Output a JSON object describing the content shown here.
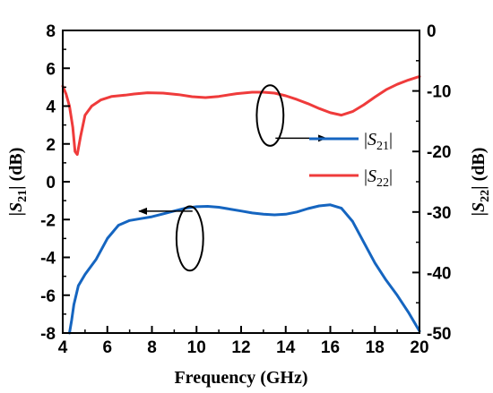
{
  "chart_data": {
    "type": "line",
    "xlabel": "Frequency (GHz)",
    "ylabel_left": {
      "prefix": "|",
      "base": "S",
      "sub": "21",
      "suffix": "| (dB)"
    },
    "ylabel_right": {
      "prefix": "|",
      "base": "S",
      "sub": "22",
      "suffix": "| (dB)"
    },
    "xlim": [
      4,
      20
    ],
    "ylim_left": [
      -8,
      8
    ],
    "ylim_right": [
      -50,
      0
    ],
    "x_ticks": [
      "4",
      "6",
      "8",
      "10",
      "12",
      "14",
      "16",
      "18",
      "20"
    ],
    "y_left_ticks": [
      "-8",
      "-6",
      "-4",
      "-2",
      "0",
      "2",
      "4",
      "6",
      "8"
    ],
    "y_right_ticks": [
      "-50",
      "-40",
      "-30",
      "-20",
      "-10",
      "0"
    ],
    "legend": {
      "position": "right-middle",
      "entries": [
        {
          "prefix": "|",
          "base": "S",
          "sub": "21",
          "suffix": "|",
          "color": "#1565c0"
        },
        {
          "prefix": "|",
          "base": "S",
          "sub": "22",
          "suffix": "|",
          "color": "#ef3b3b"
        }
      ]
    },
    "series": [
      {
        "axis": "left",
        "color": "#1565c0",
        "x": [
          4.3,
          4.4,
          4.5,
          4.7,
          5.0,
          5.5,
          6.0,
          6.5,
          7.0,
          7.5,
          8.0,
          8.5,
          9.0,
          9.5,
          10.0,
          10.5,
          11.0,
          11.5,
          12.0,
          12.5,
          13.0,
          13.5,
          14.0,
          14.5,
          15.0,
          15.5,
          16.0,
          16.5,
          17.0,
          17.5,
          18.0,
          18.5,
          19.0,
          19.5,
          20.0
        ],
        "y": [
          -8.0,
          -7.3,
          -6.5,
          -5.5,
          -4.9,
          -4.1,
          -3.0,
          -2.3,
          -2.05,
          -1.95,
          -1.85,
          -1.7,
          -1.55,
          -1.4,
          -1.32,
          -1.3,
          -1.35,
          -1.45,
          -1.55,
          -1.65,
          -1.72,
          -1.75,
          -1.72,
          -1.6,
          -1.42,
          -1.28,
          -1.22,
          -1.4,
          -2.1,
          -3.2,
          -4.3,
          -5.2,
          -6.0,
          -6.9,
          -7.9
        ]
      },
      {
        "axis": "right",
        "color": "#ef3b3b",
        "x": [
          4.0,
          4.15,
          4.3,
          4.45,
          4.55,
          4.65,
          4.8,
          5.0,
          5.3,
          5.7,
          6.2,
          6.8,
          7.2,
          7.8,
          8.5,
          9.2,
          9.8,
          10.4,
          11.0,
          11.8,
          12.5,
          13.0,
          13.5,
          14.0,
          14.5,
          15.0,
          15.5,
          16.0,
          16.5,
          17.0,
          17.5,
          18.0,
          18.5,
          19.0,
          19.5,
          20.0
        ],
        "y": [
          -9.2,
          -10.5,
          -12.5,
          -16.0,
          -20.0,
          -20.5,
          -17.5,
          -14.0,
          -12.5,
          -11.5,
          -10.9,
          -10.7,
          -10.5,
          -10.3,
          -10.35,
          -10.6,
          -10.95,
          -11.1,
          -10.9,
          -10.45,
          -10.2,
          -10.2,
          -10.35,
          -10.8,
          -11.4,
          -12.1,
          -12.9,
          -13.6,
          -14.0,
          -13.4,
          -12.3,
          -11.0,
          -9.8,
          -8.9,
          -8.2,
          -7.6
        ]
      }
    ],
    "annotations": [
      {
        "type": "ellipse",
        "target": "right",
        "arrow": "right",
        "cx": 13.3,
        "cy_left": 3.5,
        "rx": 0.6,
        "ry_left": 1.6
      },
      {
        "type": "ellipse",
        "target": "left",
        "arrow": "left",
        "cx": 9.7,
        "cy_left": -3.0,
        "rx": 0.6,
        "ry_left": 1.7
      }
    ],
    "grid": false
  }
}
